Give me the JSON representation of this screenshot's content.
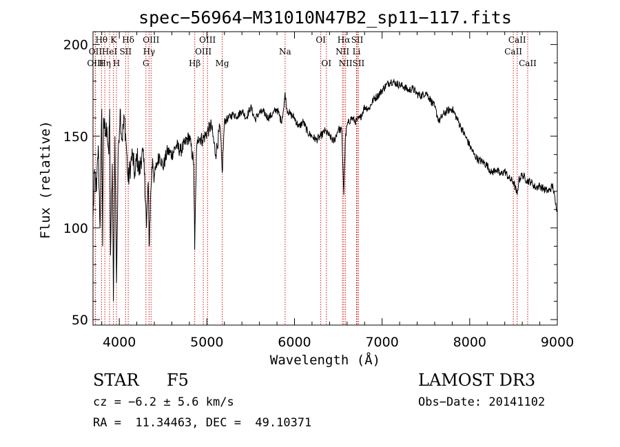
{
  "chart_data": {
    "type": "line",
    "title": "spec−56964−M31010N47B2_sp11−117.fits",
    "xlabel": "Wavelength (Å)",
    "ylabel": "Flux (relative)",
    "xlim": [
      3700,
      9000
    ],
    "ylim": [
      47,
      207
    ],
    "x_ticks": [
      4000,
      5000,
      6000,
      7000,
      8000,
      9000
    ],
    "y_ticks": [
      50,
      100,
      150,
      200
    ],
    "series": [
      {
        "name": "spectrum",
        "x": [
          3700,
          3720,
          3740,
          3760,
          3780,
          3800,
          3810,
          3820,
          3840,
          3860,
          3880,
          3890,
          3900,
          3920,
          3933,
          3950,
          3968,
          3990,
          4010,
          4030,
          4060,
          4080,
          4101,
          4130,
          4150,
          4180,
          4200,
          4230,
          4260,
          4290,
          4310,
          4330,
          4340,
          4360,
          4380,
          4400,
          4430,
          4460,
          4500,
          4550,
          4600,
          4650,
          4700,
          4750,
          4800,
          4850,
          4861,
          4880,
          4900,
          4950,
          5000,
          5050,
          5100,
          5150,
          5175,
          5200,
          5250,
          5300,
          5350,
          5400,
          5450,
          5500,
          5550,
          5600,
          5650,
          5700,
          5750,
          5800,
          5850,
          5880,
          5893,
          5910,
          5950,
          6000,
          6050,
          6100,
          6150,
          6200,
          6250,
          6300,
          6350,
          6400,
          6450,
          6500,
          6540,
          6563,
          6580,
          6600,
          6650,
          6700,
          6750,
          6800,
          6850,
          6900,
          6950,
          7000,
          7050,
          7100,
          7150,
          7200,
          7250,
          7300,
          7350,
          7400,
          7450,
          7500,
          7550,
          7600,
          7650,
          7700,
          7750,
          7800,
          7850,
          7900,
          7950,
          8000,
          8050,
          8100,
          8150,
          8200,
          8250,
          8300,
          8350,
          8400,
          8450,
          8500,
          8542,
          8560,
          8600,
          8650,
          8700,
          8750,
          8800,
          8850,
          8900,
          8950,
          8980,
          9000
        ],
        "y": [
          105,
          130,
          120,
          145,
          100,
          165,
          90,
          160,
          150,
          155,
          140,
          165,
          85,
          135,
          60,
          150,
          70,
          145,
          165,
          148,
          160,
          145,
          125,
          135,
          140,
          128,
          140,
          130,
          142,
          130,
          100,
          125,
          90,
          120,
          138,
          128,
          135,
          140,
          133,
          142,
          140,
          145,
          142,
          146,
          150,
          135,
          88,
          140,
          150,
          148,
          152,
          156,
          140,
          155,
          130,
          158,
          160,
          162,
          161,
          164,
          160,
          166,
          159,
          163,
          163,
          160,
          162,
          165,
          158,
          166,
          174,
          165,
          162,
          160,
          155,
          158,
          152,
          150,
          148,
          150,
          153,
          150,
          147,
          154,
          153,
          118,
          148,
          156,
          160,
          158,
          160,
          166,
          165,
          170,
          172,
          175,
          178,
          180,
          179,
          178,
          177,
          175,
          176,
          173,
          172,
          174,
          170,
          166,
          158,
          162,
          164,
          165,
          160,
          155,
          150,
          145,
          140,
          137,
          136,
          134,
          130,
          132,
          129,
          131,
          127,
          125,
          118,
          126,
          129,
          126,
          125,
          122,
          123,
          121,
          120,
          123,
          113,
          110
        ]
      }
    ],
    "spectral_lines": [
      {
        "label": "Hθ",
        "wavelength": 3797,
        "row": 1
      },
      {
        "label": "OII",
        "wavelength": 3727,
        "row": 2
      },
      {
        "label": "OIII",
        "wavelength": 3727,
        "row": 3
      },
      {
        "label": "K",
        "wavelength": 3934,
        "row": 1
      },
      {
        "label": "HeI",
        "wavelength": 3889,
        "row": 2
      },
      {
        "label": "Hη",
        "wavelength": 3835,
        "row": 3
      },
      {
        "label": "Hδ",
        "wavelength": 4102,
        "row": 1
      },
      {
        "label": "SII",
        "wavelength": 4072,
        "row": 2
      },
      {
        "label": "H",
        "wavelength": 3968,
        "row": 3
      },
      {
        "label": "OIII",
        "wavelength": 4363,
        "row": 1
      },
      {
        "label": "Hγ",
        "wavelength": 4340,
        "row": 2
      },
      {
        "label": "G",
        "wavelength": 4304,
        "row": 3
      },
      {
        "label": "Hβ",
        "wavelength": 4861,
        "row": 3
      },
      {
        "label": "OIII",
        "wavelength": 5007,
        "row": 1
      },
      {
        "label": "OIII",
        "wavelength": 4959,
        "row": 2
      },
      {
        "label": "Mg",
        "wavelength": 5175,
        "row": 3
      },
      {
        "label": "Na",
        "wavelength": 5893,
        "row": 2
      },
      {
        "label": "OI",
        "wavelength": 6300,
        "row": 1
      },
      {
        "label": "OI",
        "wavelength": 6364,
        "row": 3
      },
      {
        "label": "Hα",
        "wavelength": 6563,
        "row": 1
      },
      {
        "label": "NII",
        "wavelength": 6548,
        "row": 2
      },
      {
        "label": "NII",
        "wavelength": 6583,
        "row": 3
      },
      {
        "label": "SII",
        "wavelength": 6716,
        "row": 1
      },
      {
        "label": "Li",
        "wavelength": 6708,
        "row": 2
      },
      {
        "label": "SII",
        "wavelength": 6731,
        "row": 3
      },
      {
        "label": "CaII",
        "wavelength": 8542,
        "row": 1
      },
      {
        "label": "CaII",
        "wavelength": 8498,
        "row": 2
      },
      {
        "label": "CaII",
        "wavelength": 8662,
        "row": 3
      }
    ]
  },
  "info": {
    "object_class": "STAR",
    "subclass": "F5",
    "survey": "LAMOST DR3",
    "cz_line": "cz = −6.2 ± 5.6 km/s",
    "obs_date": "Obs−Date: 20141102",
    "coords": "RA =  11.34463, DEC =  49.10371"
  },
  "colors": {
    "line_marker": "#d01010",
    "spectrum": "#000000"
  }
}
